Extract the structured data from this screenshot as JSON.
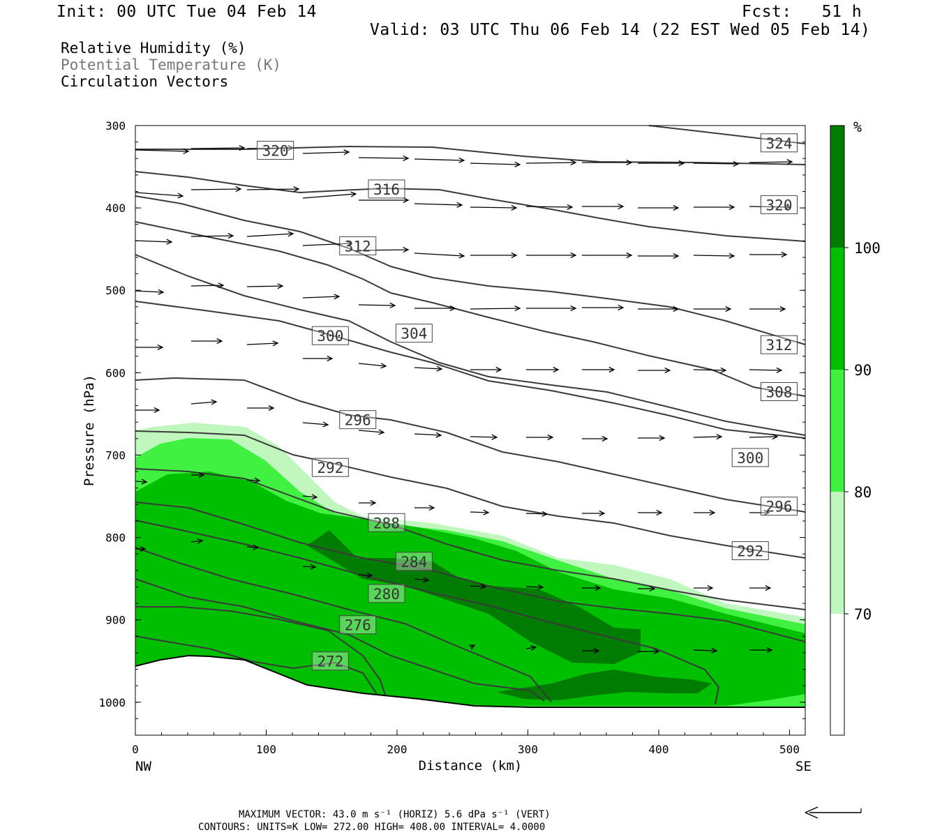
{
  "header": {
    "init": "Init: 00 UTC Tue 04 Feb 14",
    "fcst": "Fcst:   51 h",
    "valid": "Valid: 03 UTC Thu 06 Feb 14 (22 EST Wed 05 Feb 14)"
  },
  "legend": {
    "line1": "Relative Humidity (%)",
    "line2": "Potential Temperature (K)",
    "line3": "Circulation Vectors"
  },
  "footer": {
    "max_vector": "MAXIMUM VECTOR:  43.0 m s⁻¹ (HORIZ)          5.6 dPa s⁻¹ (VERT)",
    "contours": "CONTOURS:  UNITS=K  LOW=  272.00      HIGH=  408.00       INTERVAL=    4.0000"
  },
  "colors": {
    "rh70": "#bff7bf",
    "rh80": "#41f141",
    "rh90": "#00bf00",
    "rh100": "#007c00",
    "theta": "#3a3a3a"
  },
  "chart_data": {
    "type": "cross-section",
    "xlabel": "Distance (km)",
    "ylabel": "Pressure (hPa)",
    "xlim": [
      0,
      512
    ],
    "ylim": [
      1040,
      300
    ],
    "x_ticks": [
      "0",
      "100",
      "200",
      "300",
      "400",
      "500"
    ],
    "y_ticks": [
      "300",
      "400",
      "500",
      "600",
      "700",
      "800",
      "900",
      "1000"
    ],
    "x_ends": {
      "left": "NW",
      "right": "SE"
    },
    "colorbar": {
      "unit": "%",
      "levels": [
        "70",
        "80",
        "90",
        "100"
      ]
    },
    "theta_labels": [
      {
        "text": "320",
        "x": 107,
        "p": 330
      },
      {
        "text": "324",
        "x": 492,
        "p": 321
      },
      {
        "text": "316",
        "x": 192,
        "p": 377
      },
      {
        "text": "320",
        "x": 492,
        "p": 396
      },
      {
        "text": "312",
        "x": 170,
        "p": 446
      },
      {
        "text": "300",
        "x": 149,
        "p": 555
      },
      {
        "text": "304",
        "x": 213,
        "p": 552
      },
      {
        "text": "312",
        "x": 492,
        "p": 566
      },
      {
        "text": "308",
        "x": 492,
        "p": 623
      },
      {
        "text": "296",
        "x": 170,
        "p": 657
      },
      {
        "text": "300",
        "x": 470,
        "p": 703
      },
      {
        "text": "292",
        "x": 149,
        "p": 715
      },
      {
        "text": "296",
        "x": 492,
        "p": 762
      },
      {
        "text": "288",
        "x": 192,
        "p": 782
      },
      {
        "text": "292",
        "x": 470,
        "p": 816
      },
      {
        "text": "284",
        "x": 213,
        "p": 829
      },
      {
        "text": "280",
        "x": 192,
        "p": 868
      },
      {
        "text": "276",
        "x": 170,
        "p": 906
      },
      {
        "text": "272",
        "x": 149,
        "p": 950
      }
    ]
  }
}
